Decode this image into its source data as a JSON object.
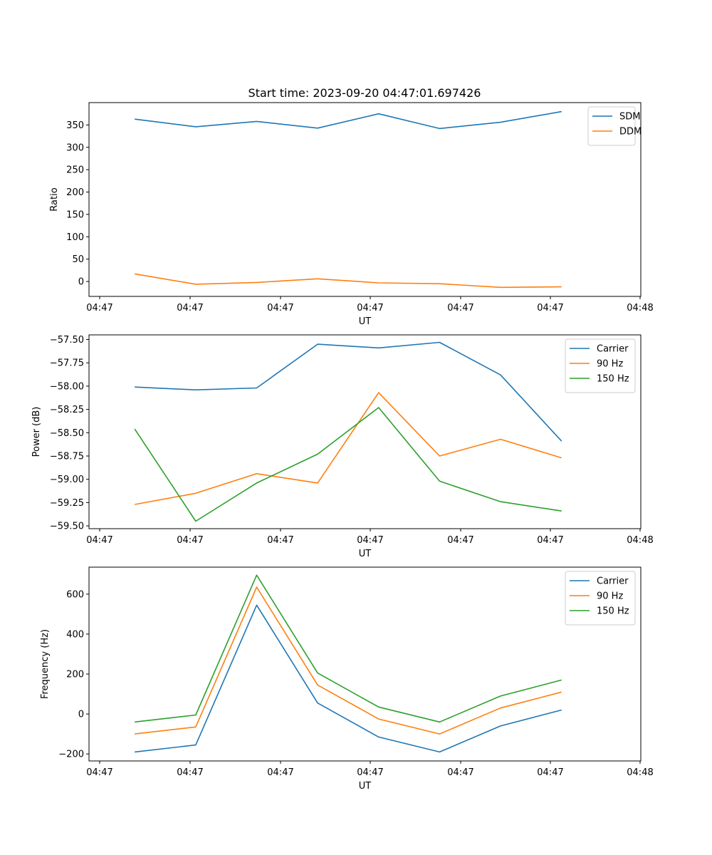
{
  "figure": {
    "title": "Start time: 2023-09-20 04:47:01.697426"
  },
  "chart_data": [
    {
      "type": "line",
      "title": "Start time: 2023-09-20 04:47:01.697426",
      "xlabel": "UT",
      "ylabel": "Ratio",
      "x_ticks": [
        "04:47",
        "04:47",
        "04:47",
        "04:47",
        "04:47",
        "04:47",
        "04:47",
        "04:48"
      ],
      "x": [
        1,
        2,
        3,
        4,
        5,
        6,
        7,
        8
      ],
      "xlim": [
        0.25,
        9.3
      ],
      "ylim": [
        -33.3,
        400
      ],
      "y_ticks": [
        0,
        50,
        100,
        150,
        200,
        250,
        300,
        350
      ],
      "legend_position": "top-right",
      "series": [
        {
          "name": "SDM",
          "color": "#1f77b4",
          "values": [
            363,
            346,
            358,
            343,
            375,
            342,
            356,
            380
          ]
        },
        {
          "name": "DDM",
          "color": "#ff7f0e",
          "values": [
            17,
            -6,
            -2,
            6,
            -3,
            -5,
            -13,
            -12
          ]
        }
      ]
    },
    {
      "type": "line",
      "xlabel": "UT",
      "ylabel": "Power (dB)",
      "x_ticks": [
        "04:47",
        "04:47",
        "04:47",
        "04:47",
        "04:47",
        "04:47",
        "04:47",
        "04:48"
      ],
      "x": [
        1,
        2,
        3,
        4,
        5,
        6,
        7,
        8
      ],
      "xlim": [
        0.25,
        9.3
      ],
      "ylim": [
        -59.53,
        -57.45
      ],
      "y_ticks": [
        -57.5,
        -57.75,
        -58.0,
        -58.25,
        -58.5,
        -58.75,
        -59.0,
        -59.25,
        -59.5
      ],
      "y_tick_labels": [
        "−57.50",
        "−57.75",
        "−58.00",
        "−58.25",
        "−58.50",
        "−58.75",
        "−59.00",
        "−59.25",
        "−59.50"
      ],
      "legend_position": "top-right",
      "series": [
        {
          "name": "Carrier",
          "color": "#1f77b4",
          "values": [
            -58.01,
            -58.04,
            -58.02,
            -57.55,
            -57.59,
            -57.53,
            -57.88,
            -58.59
          ]
        },
        {
          "name": "90 Hz",
          "color": "#ff7f0e",
          "values": [
            -59.27,
            -59.15,
            -58.94,
            -59.04,
            -58.07,
            -58.75,
            -58.57,
            -58.77
          ]
        },
        {
          "name": "150 Hz",
          "color": "#2ca02c",
          "values": [
            -58.46,
            -59.45,
            -59.04,
            -58.73,
            -58.23,
            -59.02,
            -59.24,
            -59.34
          ]
        }
      ]
    },
    {
      "type": "line",
      "xlabel": "UT",
      "ylabel": "Frequency (Hz)",
      "x_ticks": [
        "04:47",
        "04:47",
        "04:47",
        "04:47",
        "04:47",
        "04:47",
        "04:47",
        "04:48"
      ],
      "x": [
        1,
        2,
        3,
        4,
        5,
        6,
        7,
        8
      ],
      "xlim": [
        0.25,
        9.3
      ],
      "ylim": [
        -235,
        735
      ],
      "y_ticks": [
        600,
        400,
        200,
        0,
        -200
      ],
      "y_tick_labels": [
        "600",
        "400",
        "200",
        "0",
        "−200"
      ],
      "legend_position": "top-right",
      "series": [
        {
          "name": "Carrier",
          "color": "#1f77b4",
          "values": [
            -190,
            -155,
            545,
            55,
            -115,
            -190,
            -60,
            20
          ]
        },
        {
          "name": "90 Hz",
          "color": "#ff7f0e",
          "values": [
            -100,
            -65,
            635,
            145,
            -25,
            -100,
            30,
            110
          ]
        },
        {
          "name": "150 Hz",
          "color": "#2ca02c",
          "values": [
            -40,
            -5,
            695,
            205,
            35,
            -40,
            90,
            170
          ]
        }
      ]
    }
  ]
}
